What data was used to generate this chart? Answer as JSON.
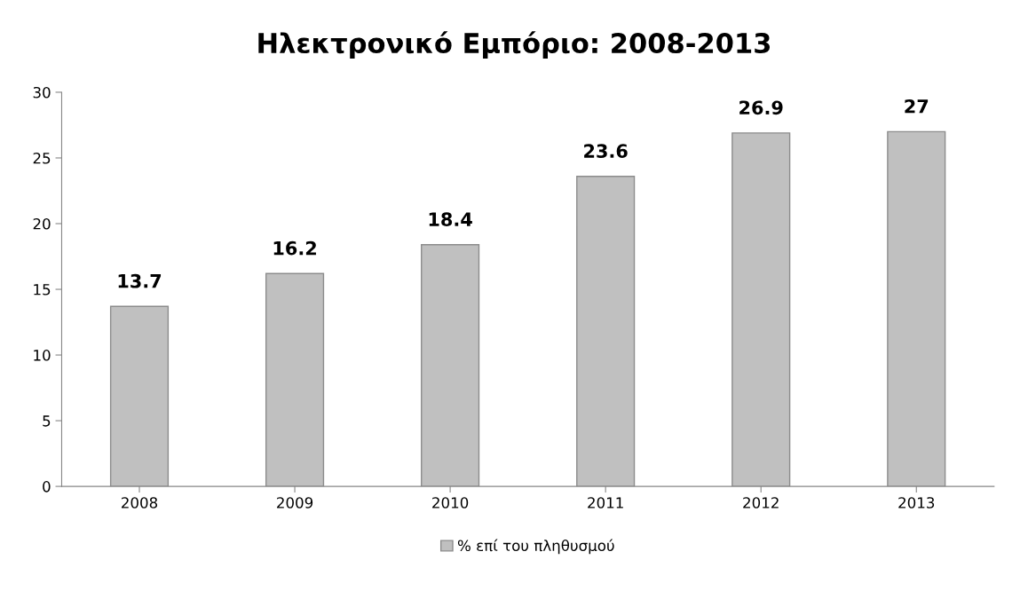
{
  "chart_data": {
    "type": "bar",
    "title": "Ηλεκτρονικό Εμπόριο: 2008-2013",
    "categories": [
      "2008",
      "2009",
      "2010",
      "2011",
      "2012",
      "2013"
    ],
    "series": [
      {
        "name": "% επί του πληθυσμού",
        "color": "#c0c0c0",
        "values": [
          13.7,
          16.2,
          18.4,
          23.6,
          26.9,
          27
        ]
      }
    ],
    "ylim": [
      0,
      30
    ],
    "yticks": [
      0,
      5,
      10,
      15,
      20,
      25,
      30
    ],
    "grid": false,
    "legend": "bottom",
    "data_labels": true
  }
}
